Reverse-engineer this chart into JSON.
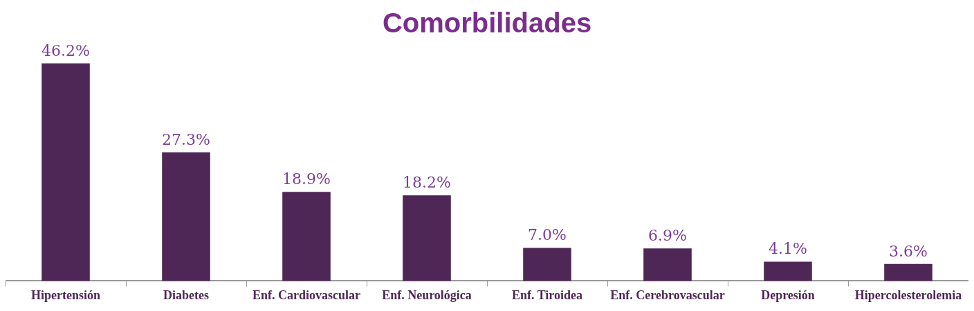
{
  "chart_data": {
    "type": "bar",
    "title": "Comorbilidades",
    "categories": [
      "Hipertensión",
      "Diabetes",
      "Enf. Cardiovascular",
      "Enf. Neurológica",
      "Enf. Tiroidea",
      "Enf. Cerebrovascular",
      "Depresión",
      "Hipercolesterolemia"
    ],
    "values": [
      46.2,
      27.3,
      18.9,
      18.2,
      7.0,
      6.9,
      4.1,
      3.6
    ],
    "value_labels": [
      "46.2%",
      "27.3%",
      "18.9%",
      "18.2%",
      "7.0%",
      "6.9%",
      "4.1%",
      "3.6%"
    ],
    "color": "#4f2756",
    "tick_labels": "x",
    "grid": false,
    "legend": false
  }
}
